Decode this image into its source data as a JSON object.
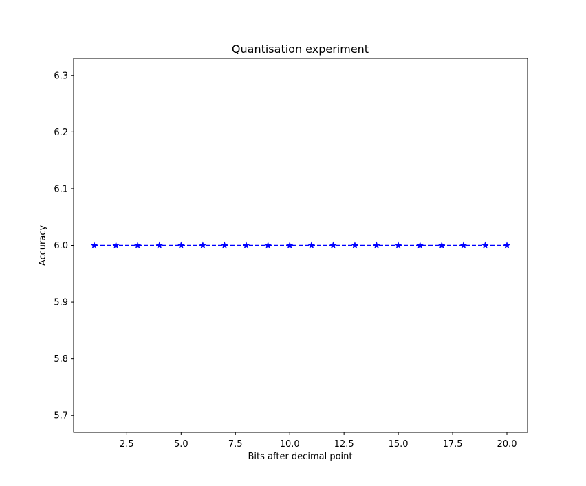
{
  "chart_data": {
    "type": "line",
    "title": "Quantisation experiment",
    "xlabel": "Bits after decimal point",
    "ylabel": "Accuracy",
    "xlim": [
      0.05,
      20.95
    ],
    "ylim": [
      5.67,
      6.33
    ],
    "x_ticks": [
      2.5,
      5.0,
      7.5,
      10.0,
      12.5,
      15.0,
      17.5,
      20.0
    ],
    "x_tick_labels": [
      "2.5",
      "5.0",
      "7.5",
      "10.0",
      "12.5",
      "15.0",
      "17.5",
      "20.0"
    ],
    "y_ticks": [
      5.7,
      5.8,
      5.9,
      6.0,
      6.1,
      6.2,
      6.3
    ],
    "y_tick_labels": [
      "5.7",
      "5.8",
      "5.9",
      "6.0",
      "6.1",
      "6.2",
      "6.3"
    ],
    "grid": false,
    "series": [
      {
        "color": "#0000ff",
        "line_style": "dashed",
        "marker": "star",
        "x": [
          1,
          2,
          3,
          4,
          5,
          6,
          7,
          8,
          9,
          10,
          11,
          12,
          13,
          14,
          15,
          16,
          17,
          18,
          19,
          20
        ],
        "y": [
          6,
          6,
          6,
          6,
          6,
          6,
          6,
          6,
          6,
          6,
          6,
          6,
          6,
          6,
          6,
          6,
          6,
          6,
          6,
          6
        ]
      }
    ]
  }
}
